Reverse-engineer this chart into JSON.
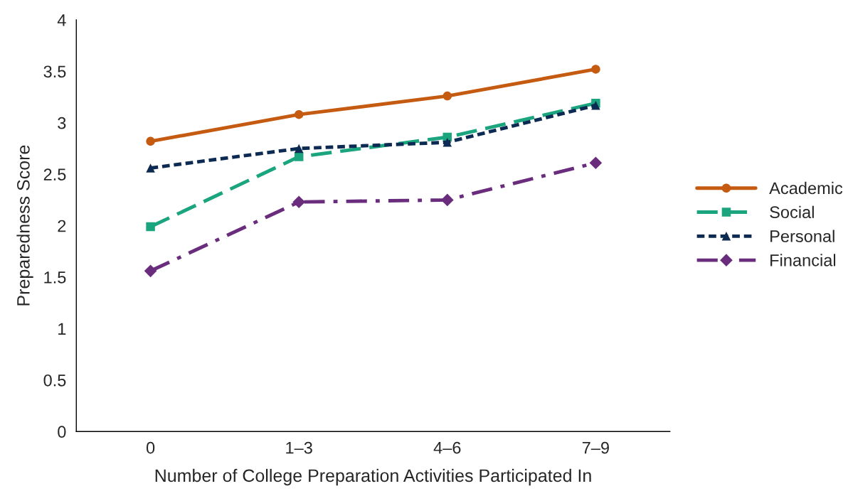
{
  "chart_data": {
    "type": "line",
    "xlabel": "Number of College Preparation Activities Participated In",
    "ylabel": "Preparedness Score",
    "categories": [
      "0",
      "1–3",
      "4–6",
      "7–9"
    ],
    "series": [
      {
        "name": "Academic",
        "color": "#c55a11",
        "marker": "circle",
        "line_style": "solid",
        "values": [
          2.82,
          3.08,
          3.26,
          3.52
        ]
      },
      {
        "name": "Social",
        "color": "#1aa57e",
        "marker": "square",
        "line_style": "dashed",
        "values": [
          1.99,
          2.67,
          2.86,
          3.19
        ]
      },
      {
        "name": "Personal",
        "color": "#0d2b52",
        "marker": "triangle",
        "line_style": "dotted",
        "values": [
          2.56,
          2.75,
          2.81,
          3.17
        ]
      },
      {
        "name": "Financial",
        "color": "#6a2c7c",
        "marker": "diamond",
        "line_style": "dashdot",
        "values": [
          1.56,
          2.23,
          2.25,
          2.61
        ]
      }
    ],
    "ylim": [
      0,
      4
    ],
    "yticks": [
      0,
      0.5,
      1,
      1.5,
      2,
      2.5,
      3,
      3.5,
      4
    ],
    "grid": false,
    "legend": "right"
  }
}
